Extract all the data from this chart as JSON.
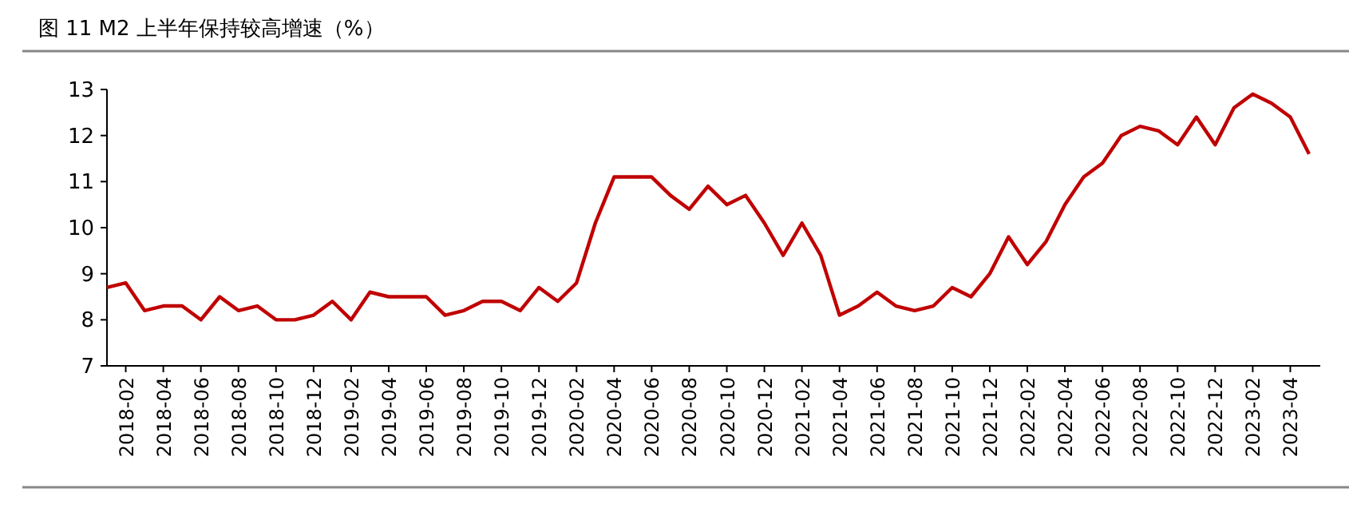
{
  "chart_data": {
    "type": "line",
    "title": "图 11 M2 上半年保持较高增速（%）",
    "categories": [
      null,
      "2018-02",
      null,
      "2018-04",
      null,
      "2018-06",
      null,
      "2018-08",
      null,
      "2018-10",
      null,
      "2018-12",
      null,
      "2019-02",
      null,
      "2019-04",
      null,
      "2019-06",
      null,
      "2019-08",
      null,
      "2019-10",
      null,
      "2019-12",
      null,
      "2020-02",
      null,
      "2020-04",
      null,
      "2020-06",
      null,
      "2020-08",
      null,
      "2020-10",
      null,
      "2020-12",
      null,
      "2021-02",
      null,
      "2021-04",
      null,
      "2021-06",
      null,
      "2021-08",
      null,
      "2021-10",
      null,
      "2021-12",
      null,
      "2022-02",
      null,
      "2022-04",
      null,
      "2022-06",
      null,
      "2022-08",
      null,
      "2022-10",
      null,
      "2022-12",
      null,
      "2023-02",
      null,
      "2023-04",
      null
    ],
    "values": [
      8.7,
      8.8,
      8.2,
      8.3,
      8.3,
      8.0,
      8.5,
      8.2,
      8.3,
      8.0,
      8.0,
      8.1,
      8.4,
      8.0,
      8.6,
      8.5,
      8.5,
      8.5,
      8.1,
      8.2,
      8.4,
      8.4,
      8.2,
      8.7,
      8.4,
      8.8,
      10.1,
      11.1,
      11.1,
      11.1,
      10.7,
      10.4,
      10.9,
      10.5,
      10.7,
      10.1,
      9.4,
      10.1,
      9.4,
      8.1,
      8.3,
      8.6,
      8.3,
      8.2,
      8.3,
      8.7,
      8.5,
      9.0,
      9.8,
      9.2,
      9.7,
      10.5,
      11.1,
      11.4,
      12.0,
      12.2,
      12.1,
      11.8,
      12.4,
      11.8,
      12.6,
      12.9,
      12.7,
      12.4,
      11.6
    ],
    "color": "#c00000",
    "ylim": [
      7,
      13
    ],
    "yticks": [
      7,
      8,
      9,
      10,
      11,
      12,
      13
    ]
  }
}
